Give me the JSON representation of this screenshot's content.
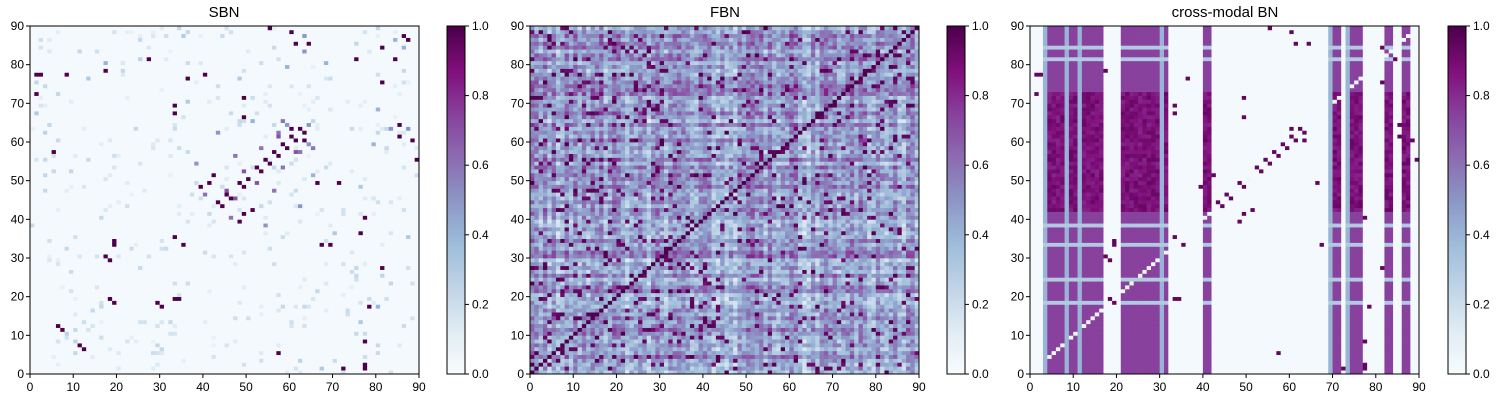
{
  "chart_data": [
    {
      "type": "heatmap",
      "title": "SBN",
      "xlim": [
        0,
        90
      ],
      "ylim": [
        0,
        90
      ],
      "x_ticks": [
        0,
        10,
        20,
        30,
        40,
        50,
        60,
        70,
        80,
        90
      ],
      "y_ticks": [
        0,
        10,
        20,
        30,
        40,
        50,
        60,
        70,
        80,
        90
      ],
      "colorbar": {
        "range": [
          0,
          1
        ],
        "ticks": [
          "0.0",
          "0.2",
          "0.4",
          "0.6",
          "0.8",
          "1.0"
        ]
      },
      "colormap": "BuPu",
      "grid_size": 90,
      "background_value": 0.02,
      "strong_cells": [
        [
          1,
          77,
          1.0
        ],
        [
          2,
          77,
          1.0
        ],
        [
          5,
          57,
          1.0
        ],
        [
          6,
          12,
          1.0
        ],
        [
          8,
          77,
          1.0
        ],
        [
          11,
          7,
          1.0
        ],
        [
          17,
          78,
          1.0
        ],
        [
          18,
          29,
          1.0
        ],
        [
          19,
          33,
          1.0
        ],
        [
          19,
          18,
          1.0
        ],
        [
          27,
          81,
          1.0
        ],
        [
          30,
          17,
          1.0
        ],
        [
          34,
          19,
          1.0
        ],
        [
          35,
          33,
          1.0
        ],
        [
          36,
          76,
          1.0
        ],
        [
          39,
          48,
          1.0
        ],
        [
          41,
          49,
          1.0
        ],
        [
          42,
          51,
          1.0
        ],
        [
          44,
          43,
          1.0
        ],
        [
          46,
          45,
          1.0
        ],
        [
          48,
          49,
          1.0
        ],
        [
          50,
          50,
          1.0
        ],
        [
          52,
          53,
          1.0
        ],
        [
          54,
          55,
          1.0
        ],
        [
          56,
          57,
          1.0
        ],
        [
          58,
          59,
          1.0
        ],
        [
          60,
          61,
          1.0
        ],
        [
          62,
          63,
          1.0
        ],
        [
          63,
          60,
          1.0
        ],
        [
          64,
          85,
          1.0
        ],
        [
          66,
          49,
          1.0
        ],
        [
          67,
          33,
          1.0
        ],
        [
          69,
          33,
          1.0
        ],
        [
          71,
          49,
          1.0
        ],
        [
          72,
          1,
          1.0
        ],
        [
          75,
          81,
          1.0
        ],
        [
          77,
          40,
          1.0
        ],
        [
          78,
          17,
          1.0
        ],
        [
          81,
          84,
          1.0
        ],
        [
          85,
          61,
          1.0
        ],
        [
          86,
          87,
          1.0
        ],
        [
          88,
          60,
          1.0
        ],
        [
          89,
          55,
          1.0
        ]
      ],
      "medium_cells": [
        [
          1,
          67,
          0.3
        ],
        [
          3,
          62,
          0.25
        ],
        [
          8,
          10,
          0.25
        ],
        [
          13,
          76,
          0.3
        ],
        [
          17,
          80,
          0.4
        ],
        [
          25,
          81,
          0.25
        ],
        [
          35,
          87,
          0.3
        ],
        [
          38,
          54,
          0.5
        ],
        [
          40,
          46,
          0.6
        ],
        [
          43,
          62,
          0.5
        ],
        [
          45,
          47,
          0.7
        ],
        [
          47,
          56,
          0.6
        ],
        [
          49,
          52,
          0.7
        ],
        [
          51,
          65,
          0.4
        ],
        [
          53,
          58,
          0.6
        ],
        [
          55,
          54,
          0.7
        ],
        [
          57,
          62,
          0.6
        ],
        [
          59,
          64,
          0.5
        ],
        [
          61,
          57,
          0.7
        ],
        [
          64,
          64,
          0.5
        ],
        [
          65,
          58,
          0.6
        ],
        [
          68,
          80,
          0.4
        ],
        [
          70,
          36,
          0.3
        ],
        [
          76,
          48,
          0.3
        ],
        [
          79,
          59,
          0.4
        ],
        [
          83,
          63,
          0.5
        ],
        [
          84,
          86,
          0.4
        ],
        [
          87,
          63,
          0.5
        ]
      ]
    },
    {
      "type": "heatmap",
      "title": "FBN",
      "xlim": [
        0,
        90
      ],
      "ylim": [
        0,
        90
      ],
      "x_ticks": [
        0,
        10,
        20,
        30,
        40,
        50,
        60,
        70,
        80,
        90
      ],
      "y_ticks": [
        0,
        10,
        20,
        30,
        40,
        50,
        60,
        70,
        80,
        90
      ],
      "colorbar": {
        "range": [
          0,
          1
        ],
        "ticks": [
          "0.0",
          "0.2",
          "0.4",
          "0.6",
          "0.8",
          "1.0"
        ]
      },
      "colormap": "BuPu",
      "grid_size": 90,
      "diagonal_value": 1.0,
      "dense_random_range": [
        0.1,
        0.85
      ]
    },
    {
      "type": "heatmap",
      "title": "cross-modal BN",
      "xlim": [
        0,
        90
      ],
      "ylim": [
        0,
        90
      ],
      "x_ticks": [
        0,
        10,
        20,
        30,
        40,
        50,
        60,
        70,
        80,
        90
      ],
      "y_ticks": [
        0,
        10,
        20,
        30,
        40,
        50,
        60,
        70,
        80,
        90
      ],
      "colorbar": {
        "range": [
          0,
          1
        ],
        "ticks": [
          "0.0",
          "0.2",
          "0.4",
          "0.6",
          "0.8",
          "1.0"
        ]
      },
      "colormap": "BuPu",
      "grid_size": 90,
      "column_bands": [
        [
          3,
          4,
          0.4
        ],
        [
          4,
          8,
          0.75
        ],
        [
          8,
          9,
          0.4
        ],
        [
          9,
          11,
          0.75
        ],
        [
          11,
          12,
          0.4
        ],
        [
          12,
          17,
          0.75
        ],
        [
          21,
          30,
          0.75
        ],
        [
          30,
          31,
          0.4
        ],
        [
          31,
          32,
          0.75
        ],
        [
          40,
          42,
          0.75
        ],
        [
          69,
          70,
          0.4
        ],
        [
          70,
          72,
          0.75
        ],
        [
          73,
          74,
          0.4
        ],
        [
          74,
          77,
          0.75
        ],
        [
          82,
          84,
          0.75
        ],
        [
          86,
          88,
          0.75
        ]
      ],
      "row_gaps": [
        18,
        24,
        33,
        38,
        81,
        84
      ]
    }
  ]
}
